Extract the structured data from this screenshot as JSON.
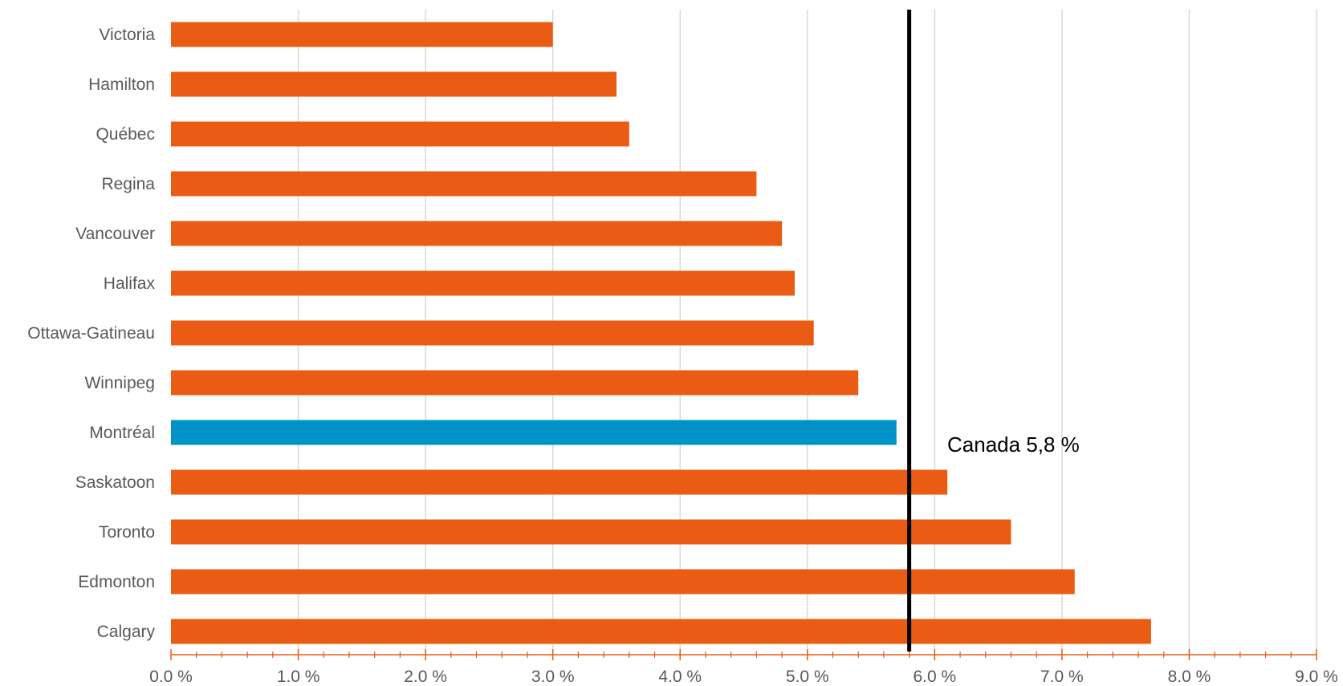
{
  "chart_data": {
    "type": "bar",
    "orientation": "horizontal",
    "categories": [
      "Victoria",
      "Hamilton",
      "Québec",
      "Regina",
      "Vancouver",
      "Halifax",
      "Ottawa-Gatineau",
      "Winnipeg",
      "Montréal",
      "Saskatoon",
      "Toronto",
      "Edmonton",
      "Calgary"
    ],
    "values": [
      3.0,
      3.5,
      3.6,
      4.6,
      4.8,
      4.9,
      5.05,
      5.4,
      5.7,
      6.1,
      6.6,
      7.1,
      7.7
    ],
    "highlight_category": "Montréal",
    "xlim": [
      0,
      9
    ],
    "x_ticks": [
      0,
      1,
      2,
      3,
      4,
      5,
      6,
      7,
      8,
      9
    ],
    "x_tick_labels": [
      "0.0 %",
      "1.0 %",
      "2.0 %",
      "3.0 %",
      "4.0 %",
      "5.0 %",
      "6.0 %",
      "7.0 %",
      "8.0 %",
      "9.0 %"
    ],
    "reference_line": {
      "value": 5.8,
      "label": "Canada 5,8 %"
    },
    "grid": true,
    "title": "",
    "xlabel": "",
    "ylabel": "",
    "colors": {
      "bar": "#EA5B13",
      "highlight": "#0093C9",
      "reference": "#000000",
      "grid": "#D9D9D9",
      "axis": "#EA5B13"
    }
  }
}
